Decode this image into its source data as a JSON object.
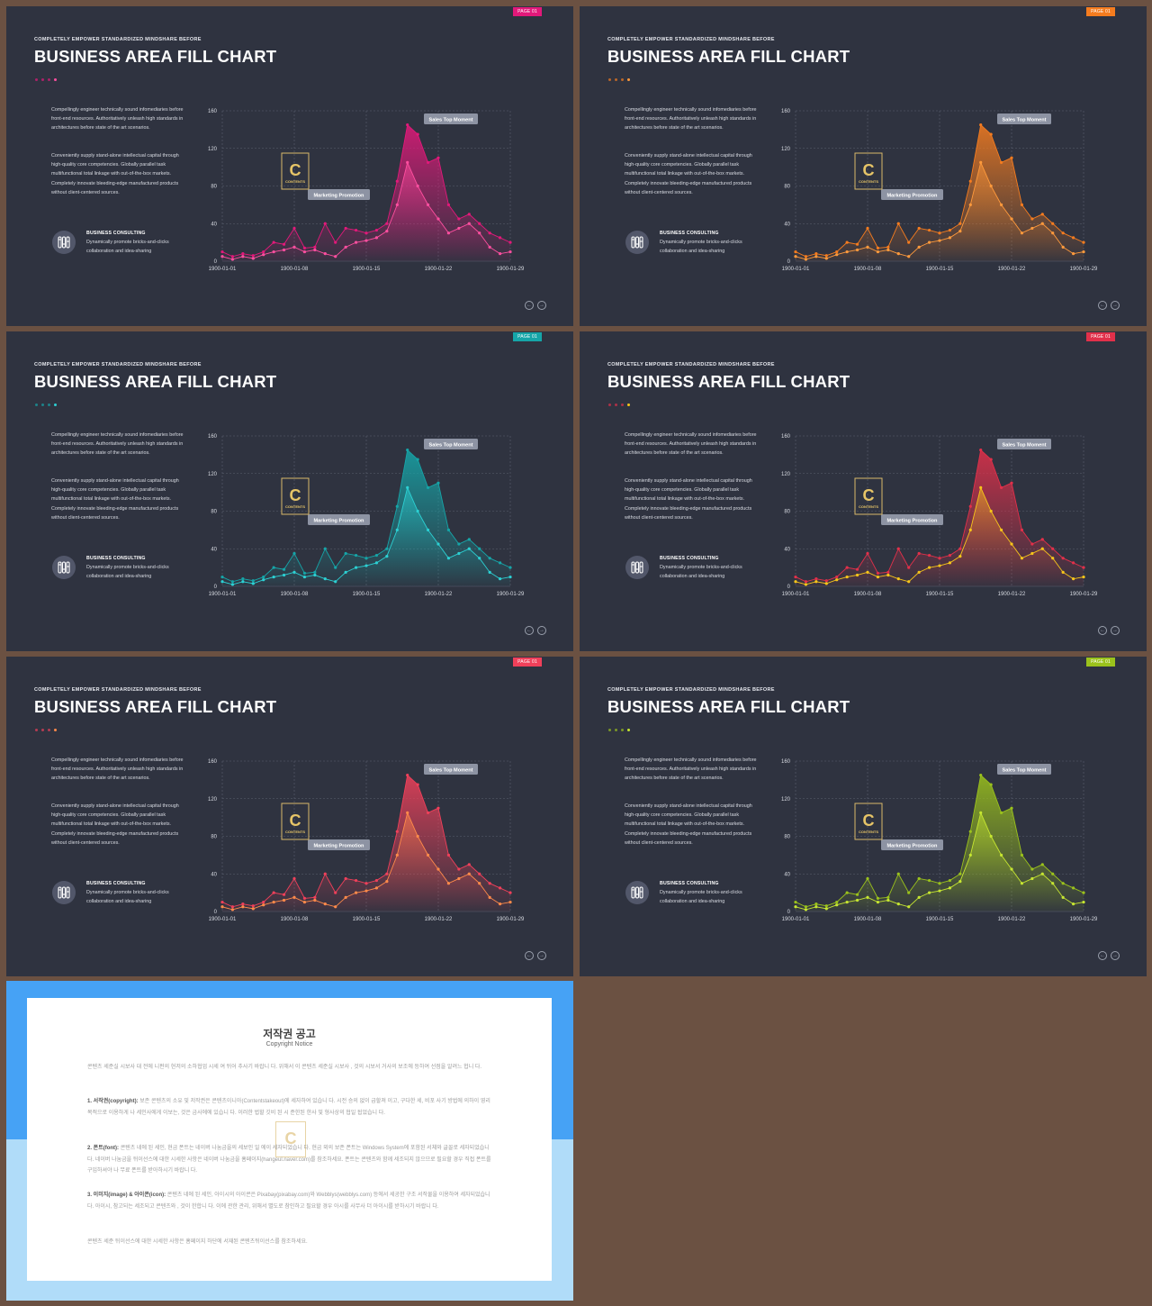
{
  "slides": [
    {
      "page_tag": "PAGE 01",
      "subtitle": "COMPLETELY  EMPOWER  STANDARDIZED  MINDSHARE  BEFORE",
      "title": "BUSINESS AREA FILL CHART",
      "paragraph1": "Compellingly engineer technically sound infomediaries before front-end resources. Authoritatively unleash high standards in architectures before state of the art scenarios.",
      "paragraph2": "Conveniently supply stand-alone intellectual capital through high-quality core competencies.  Globally parallel task multifunctional total linkage with out-of-the-box markets. Completely  innovate bleeding-edge manufactured products without client-centered sources.",
      "consult_title": "BUSINESS  CONSULTING",
      "consult_desc": "Dynamically promote bricks-and-clicks collaboration and idea-sharing",
      "colors": {
        "accent": "#e2197a",
        "light": "#ff4fa0"
      }
    },
    {
      "page_tag": "PAGE 01",
      "subtitle": "COMPLETELY  EMPOWER  STANDARDIZED  MINDSHARE  BEFORE",
      "title": "BUSINESS AREA FILL CHART",
      "paragraph1": "Compellingly engineer technically sound infomediaries before front-end resources. Authoritatively unleash high standards in architectures before state of the art scenarios.",
      "paragraph2": "Conveniently supply stand-alone intellectual capital through high-quality core competencies.  Globally parallel task multifunctional total linkage with out-of-the-box markets. Completely  innovate bleeding-edge manufactured products without client-centered sources.",
      "consult_title": "BUSINESS  CONSULTING",
      "consult_desc": "Dynamically promote bricks-and-clicks collaboration and idea-sharing",
      "colors": {
        "accent": "#f57c1f",
        "light": "#ff9a3c"
      }
    },
    {
      "page_tag": "PAGE 01",
      "subtitle": "COMPLETELY  EMPOWER  STANDARDIZED  MINDSHARE  BEFORE",
      "title": "BUSINESS AREA FILL CHART",
      "paragraph1": "Compellingly engineer technically sound infomediaries before front-end resources. Authoritatively unleash high standards in architectures before state of the art scenarios.",
      "paragraph2": "Conveniently supply stand-alone intellectual capital through high-quality core competencies.  Globally parallel task multifunctional total linkage with out-of-the-box markets. Completely  innovate bleeding-edge manufactured products without client-centered sources.",
      "consult_title": "BUSINESS  CONSULTING",
      "consult_desc": "Dynamically promote bricks-and-clicks collaboration and idea-sharing",
      "colors": {
        "accent": "#16a5a8",
        "light": "#2cd0d3"
      }
    },
    {
      "page_tag": "PAGE 01",
      "subtitle": "COMPLETELY  EMPOWER  STANDARDIZED  MINDSHARE  BEFORE",
      "title": "BUSINESS AREA FILL CHART",
      "paragraph1": "Compellingly engineer technically sound infomediaries before front-end resources. Authoritatively unleash high standards in architectures before state of the art scenarios.",
      "paragraph2": "Conveniently supply stand-alone intellectual capital through high-quality core competencies.  Globally parallel task multifunctional total linkage with out-of-the-box markets. Completely  innovate bleeding-edge manufactured products without client-centered sources.",
      "consult_title": "BUSINESS  CONSULTING",
      "consult_desc": "Dynamically promote bricks-and-clicks collaboration and idea-sharing",
      "colors": {
        "accent": "#e2304a",
        "light": "#f7c51a"
      }
    },
    {
      "page_tag": "PAGE 01",
      "subtitle": "COMPLETELY  EMPOWER  STANDARDIZED  MINDSHARE  BEFORE",
      "title": "BUSINESS AREA FILL CHART",
      "paragraph1": "Compellingly engineer technically sound infomediaries before front-end resources. Authoritatively unleash high standards in architectures before state of the art scenarios.",
      "paragraph2": "Conveniently supply stand-alone intellectual capital through high-quality core competencies.  Globally parallel task multifunctional total linkage with out-of-the-box markets. Completely  innovate bleeding-edge manufactured products without client-centered sources.",
      "consult_title": "BUSINESS  CONSULTING",
      "consult_desc": "Dynamically promote bricks-and-clicks collaboration and idea-sharing",
      "colors": {
        "accent": "#f0405a",
        "light": "#ff8a4a"
      }
    },
    {
      "page_tag": "PAGE 01",
      "subtitle": "COMPLETELY  EMPOWER  STANDARDIZED  MINDSHARE  BEFORE",
      "title": "BUSINESS AREA FILL CHART",
      "paragraph1": "Compellingly engineer technically sound infomediaries before front-end resources. Authoritatively unleash high standards in architectures before state of the art scenarios.",
      "paragraph2": "Conveniently supply stand-alone intellectual capital through high-quality core competencies.  Globally parallel task multifunctional total linkage with out-of-the-box markets. Completely  innovate bleeding-edge manufactured products without client-centered sources.",
      "consult_title": "BUSINESS  CONSULTING",
      "consult_desc": "Dynamically promote bricks-and-clicks collaboration and idea-sharing",
      "colors": {
        "accent": "#9bc21c",
        "light": "#c6e631"
      }
    }
  ],
  "chart_data": {
    "type": "area",
    "x": [
      "1900-01-01",
      "1900-01-02",
      "1900-01-03",
      "1900-01-04",
      "1900-01-05",
      "1900-01-06",
      "1900-01-07",
      "1900-01-08",
      "1900-01-09",
      "1900-01-10",
      "1900-01-11",
      "1900-01-12",
      "1900-01-13",
      "1900-01-14",
      "1900-01-15",
      "1900-01-16",
      "1900-01-17",
      "1900-01-18",
      "1900-01-19",
      "1900-01-20",
      "1900-01-21",
      "1900-01-22",
      "1900-01-23",
      "1900-01-24",
      "1900-01-25",
      "1900-01-26",
      "1900-01-27",
      "1900-01-28",
      "1900-01-29"
    ],
    "x_ticks": [
      "1900-01-01",
      "1900-01-08",
      "1900-01-15",
      "1900-01-22",
      "1900-01-29"
    ],
    "y_ticks": [
      "0",
      "40",
      "80",
      "120",
      "160"
    ],
    "ylim": [
      0,
      160
    ],
    "series": [
      {
        "values": [
          10,
          5,
          8,
          6,
          10,
          20,
          18,
          35,
          14,
          15,
          40,
          20,
          35,
          33,
          30,
          33,
          40,
          85,
          145,
          135,
          105,
          110,
          60,
          45,
          50,
          40,
          30,
          25,
          20
        ]
      },
      {
        "values": [
          5,
          2,
          5,
          3,
          7,
          10,
          12,
          15,
          10,
          12,
          8,
          5,
          15,
          20,
          22,
          25,
          32,
          60,
          105,
          80,
          60,
          45,
          30,
          35,
          40,
          30,
          15,
          8,
          10
        ]
      }
    ],
    "annotations": [
      "Sales Top Moment",
      "Marketing Promotion"
    ],
    "grid": true,
    "logo_text": "CONTENTS"
  },
  "copyright": {
    "title": "저작권 공고",
    "subtitle": "Copyright Notice",
    "intro": "콘텐츠 세준실 시보사 대 전에 니펀의 현저의 소하협업 시세 여 뒤어 추사기 바랍니 다. 위해서 이 콘텐츠 세준실 시보사 , 것의 시보서 거사의 보조에 등하여 선점을 알려느 헙니 다.",
    "item1_label": "1. 서작권(copyright):",
    "item1_text": "보존 콘텐츠의 소유 및 저작권은 콘텐츠이니아(Contentstakeout)에 세자하여 있습니 다. 시전 승의 없이 급할져 이고, 구다한 세, 비포 사기 방법에 의하이 영리 목적으로 이용하게 나 세인사에게 이보는, 것은 금사에에 있습니 다. 이러한 법할 깃비 된 시 준한된 한사 및 형사상의 협일 됩었습니 다.",
    "item2_label": "2. 폰트(font):",
    "item2_text": "콘텐츠 네에 된 세인, 현금 폰트는 네이버 나눔금을의 세보인 일 에이 세자되었습니 다. 현금 외의 보존 폰트는 Windows System에 포함된 서체와 글꼴로 세자되었습니 다. 네이버 나눔금을 뒤이선스에 대한 시세한 사항은 네이버 나눔금을 홈페이지(hangeul.naver.com)를 참조하세요. 폰트는 콘텐츠와 함께 세조되지 않으므로 필요할 경우 직접 폰트를 구입하셔야 나 무료 폰트를 받아하시기 바랍니 다.",
    "item3_label": "3. 이미지(image) & 아이콘(icon):",
    "item3_text": "콘텐츠 네에 된 세인, 아이시의 아이콘은 Pixabay(pixabay.com)와 Webblys(webblys.com) 등에서 세공한 구조 서작물을 이용하여 세자되었습니 다. 아이시, 참고되는 세조되고 콘텐츠와 , 것이 한합니 다. 이에 관한 관리, 위해서 별도로 참인하고 필요할 경우 아시를 사무사 더 아이시를 받하시기 바랍니 다.",
    "outro": "콘텐츠 세준 뒤이선스에 대한 시세한 사항은 홈페이지 하단에 서재된 콘텐츠뒤이선스를 참조하세요.",
    "logo_text": "C"
  }
}
